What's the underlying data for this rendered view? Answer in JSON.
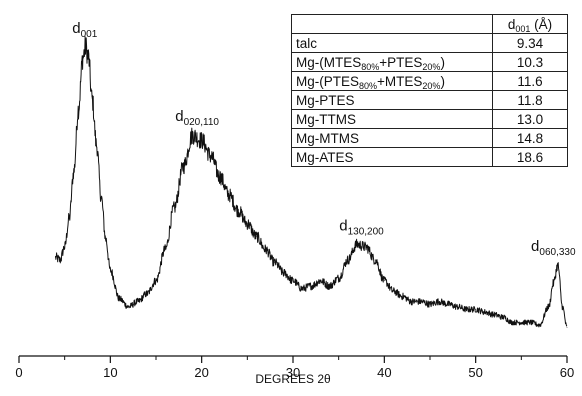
{
  "chart_data": {
    "type": "line",
    "xlabel": "DEGREES 2θ",
    "ylabel": "",
    "xlim": [
      0,
      60
    ],
    "xticks": [
      "0",
      "10",
      "20",
      "30",
      "40",
      "50",
      "60"
    ],
    "grid": false,
    "series": [
      {
        "x": [
          4.0,
          4.5,
          5.0,
          5.5,
          6.0,
          6.5,
          7.0,
          7.3,
          7.6,
          8.0,
          8.5,
          9.0,
          9.5,
          10.0,
          11.0,
          12.0,
          13.0,
          14.0,
          15.0,
          16.0,
          17.0,
          18.0,
          19.0,
          20.0,
          21.0,
          22.0,
          23.0,
          24.0,
          25.0,
          26.0,
          27.0,
          28.0,
          29.0,
          30.0,
          31.0,
          32.0,
          33.0,
          34.0,
          35.0,
          36.0,
          37.0,
          38.0,
          39.0,
          40.0,
          41.0,
          42.0,
          43.0,
          44.0,
          45.0,
          46.0,
          47.0,
          48.0,
          49.0,
          50.0,
          51.0,
          52.0,
          53.0,
          54.0,
          55.0,
          56.0,
          57.0,
          58.0,
          58.5,
          59.0,
          59.5,
          60.0
        ],
        "y": [
          155,
          150,
          175,
          230,
          320,
          440,
          540,
          560,
          540,
          460,
          370,
          270,
          190,
          130,
          75,
          60,
          70,
          85,
          110,
          170,
          250,
          330,
          390,
          380,
          350,
          310,
          275,
          245,
          220,
          195,
          170,
          145,
          125,
          110,
          95,
          100,
          110,
          100,
          115,
          150,
          180,
          175,
          150,
          110,
          90,
          80,
          70,
          70,
          65,
          70,
          65,
          60,
          55,
          55,
          50,
          45,
          40,
          30,
          30,
          30,
          25,
          60,
          105,
          140,
          60,
          20
        ]
      }
    ],
    "annotations": [
      {
        "main": "d",
        "sub": "001",
        "x": 7.2
      },
      {
        "main": "d",
        "sub": "020,110",
        "x": 19.5
      },
      {
        "main": "d",
        "sub": "130,200",
        "x": 37.5
      },
      {
        "main": "d",
        "sub": "060,330",
        "x": 58.5
      }
    ],
    "table": {
      "header": {
        "main": "d",
        "sub": "001",
        "unit": " (Å)"
      },
      "rows": [
        {
          "parts": [
            {
              "t": "talc"
            }
          ],
          "value": "9.34"
        },
        {
          "parts": [
            {
              "t": "Mg-(MTES"
            },
            {
              "s": "80%"
            },
            {
              "t": "+PTES"
            },
            {
              "s": "20%"
            },
            {
              "t": ")"
            }
          ],
          "value": "10.3"
        },
        {
          "parts": [
            {
              "t": "Mg-(PTES"
            },
            {
              "s": "80%"
            },
            {
              "t": "+MTES"
            },
            {
              "s": "20%"
            },
            {
              "t": ")"
            }
          ],
          "value": "11.6"
        },
        {
          "parts": [
            {
              "t": "Mg-PTES"
            }
          ],
          "value": "11.8"
        },
        {
          "parts": [
            {
              "t": "Mg-TTMS"
            }
          ],
          "value": "13.0"
        },
        {
          "parts": [
            {
              "t": "Mg-MTMS"
            }
          ],
          "value": "14.8"
        },
        {
          "parts": [
            {
              "t": "Mg-ATES"
            }
          ],
          "value": "18.6"
        }
      ]
    }
  }
}
